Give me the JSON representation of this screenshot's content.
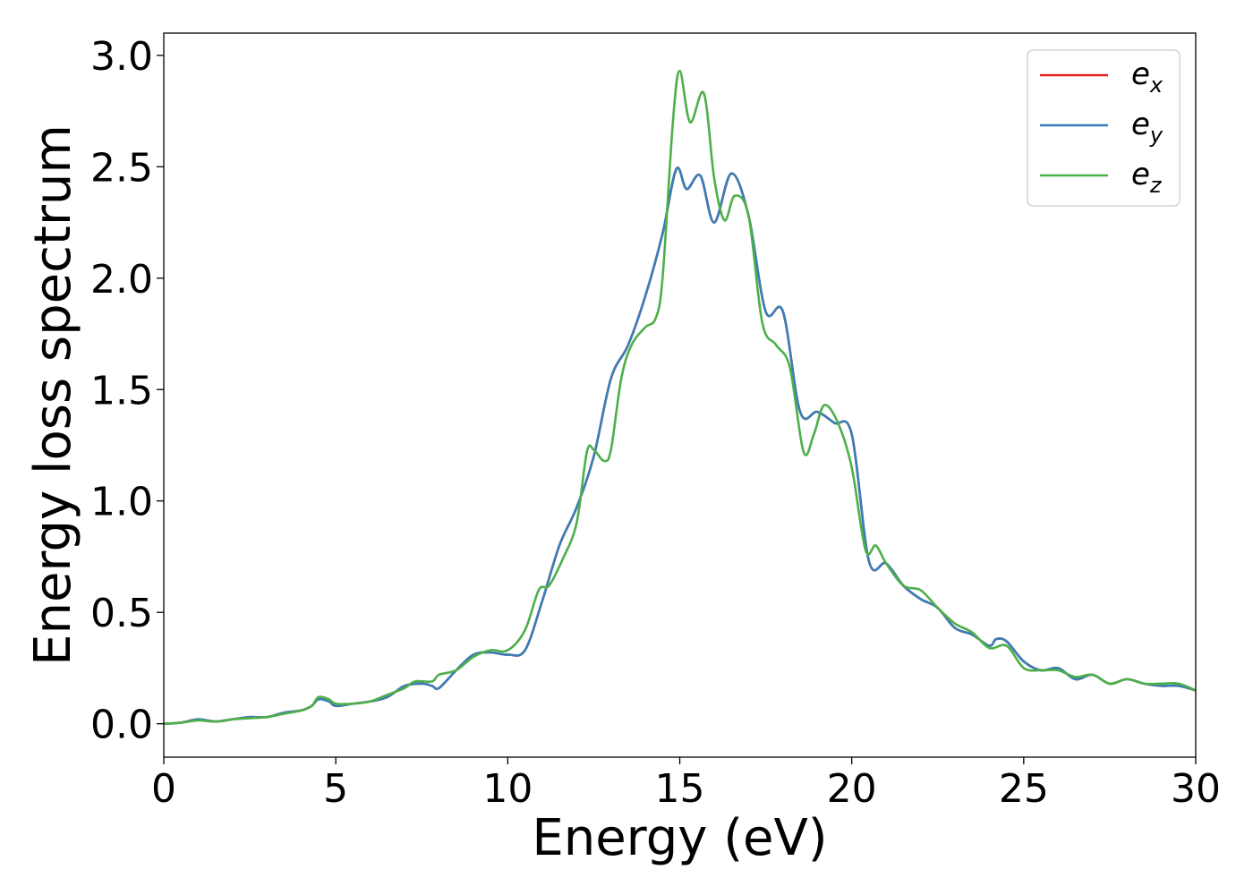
{
  "chart_data": {
    "type": "line",
    "xlabel": "Energy (eV)",
    "ylabel": "Energy loss spectrum",
    "xlim": [
      0,
      30
    ],
    "ylim": [
      -0.15,
      3.1
    ],
    "xticks": [
      0,
      5,
      10,
      15,
      20,
      25,
      30
    ],
    "xtick_labels": [
      "0",
      "5",
      "10",
      "15",
      "20",
      "25",
      "30"
    ],
    "yticks": [
      0.0,
      0.5,
      1.0,
      1.5,
      2.0,
      2.5,
      3.0
    ],
    "ytick_labels": [
      "0.0",
      "0.5",
      "1.0",
      "1.5",
      "2.0",
      "2.5",
      "3.0"
    ],
    "grid": false,
    "legend_position": "top-right",
    "series": [
      {
        "name": "e",
        "subscript": "x",
        "color": "#e41a1c",
        "x": [
          0,
          0.5,
          1,
          1.5,
          2,
          2.5,
          3,
          3.5,
          4,
          4.3,
          4.5,
          4.8,
          5,
          5.5,
          6,
          6.5,
          7,
          7.5,
          7.8,
          8,
          8.5,
          9,
          9.5,
          10,
          10.5,
          11,
          11.5,
          12,
          12.5,
          13,
          13.5,
          14,
          14.5,
          14.9,
          15.2,
          15.6,
          16,
          16.5,
          17,
          17.5,
          18,
          18.5,
          19,
          19.5,
          20,
          20.5,
          21,
          21.5,
          22,
          22.5,
          23,
          23.5,
          24,
          24.2,
          24.5,
          25,
          25.5,
          26,
          26.5,
          27,
          27.5,
          28,
          28.5,
          29,
          29.5,
          30
        ],
        "y": [
          0,
          0.005,
          0.02,
          0.01,
          0.02,
          0.03,
          0.03,
          0.05,
          0.06,
          0.08,
          0.11,
          0.1,
          0.08,
          0.09,
          0.1,
          0.12,
          0.17,
          0.18,
          0.17,
          0.16,
          0.24,
          0.31,
          0.32,
          0.31,
          0.33,
          0.55,
          0.8,
          0.97,
          1.2,
          1.55,
          1.7,
          1.92,
          2.2,
          2.49,
          2.4,
          2.46,
          2.25,
          2.47,
          2.28,
          1.85,
          1.85,
          1.4,
          1.4,
          1.35,
          1.3,
          0.73,
          0.72,
          0.62,
          0.56,
          0.52,
          0.43,
          0.4,
          0.35,
          0.38,
          0.37,
          0.28,
          0.24,
          0.25,
          0.2,
          0.22,
          0.18,
          0.2,
          0.18,
          0.17,
          0.17,
          0.15
        ]
      },
      {
        "name": "e",
        "subscript": "y",
        "color": "#377eb8",
        "x": [
          0,
          0.5,
          1,
          1.5,
          2,
          2.5,
          3,
          3.5,
          4,
          4.3,
          4.5,
          4.8,
          5,
          5.5,
          6,
          6.5,
          7,
          7.5,
          7.8,
          8,
          8.5,
          9,
          9.5,
          10,
          10.5,
          11,
          11.5,
          12,
          12.5,
          13,
          13.5,
          14,
          14.5,
          14.9,
          15.2,
          15.6,
          16,
          16.5,
          17,
          17.5,
          18,
          18.5,
          19,
          19.5,
          20,
          20.5,
          21,
          21.5,
          22,
          22.5,
          23,
          23.5,
          24,
          24.2,
          24.5,
          25,
          25.5,
          26,
          26.5,
          27,
          27.5,
          28,
          28.5,
          29,
          29.5,
          30
        ],
        "y": [
          0,
          0.005,
          0.02,
          0.01,
          0.02,
          0.03,
          0.03,
          0.05,
          0.06,
          0.08,
          0.11,
          0.1,
          0.08,
          0.09,
          0.1,
          0.12,
          0.17,
          0.18,
          0.17,
          0.16,
          0.24,
          0.31,
          0.32,
          0.31,
          0.33,
          0.55,
          0.8,
          0.97,
          1.2,
          1.55,
          1.7,
          1.92,
          2.2,
          2.49,
          2.4,
          2.46,
          2.25,
          2.47,
          2.28,
          1.85,
          1.85,
          1.4,
          1.4,
          1.35,
          1.3,
          0.73,
          0.72,
          0.62,
          0.56,
          0.52,
          0.43,
          0.4,
          0.35,
          0.38,
          0.37,
          0.28,
          0.24,
          0.25,
          0.2,
          0.22,
          0.18,
          0.2,
          0.18,
          0.17,
          0.17,
          0.15
        ]
      },
      {
        "name": "e",
        "subscript": "z",
        "color": "#4daf4a",
        "x": [
          0,
          0.5,
          1,
          1.5,
          2,
          2.5,
          3,
          3.5,
          4,
          4.3,
          4.5,
          4.8,
          5,
          5.5,
          6,
          6.5,
          7,
          7.3,
          7.8,
          8,
          8.5,
          9,
          9.5,
          10,
          10.5,
          10.9,
          11.2,
          11.6,
          12,
          12.3,
          12.5,
          12.8,
          13,
          13.3,
          13.6,
          14,
          14.3,
          14.5,
          14.8,
          15,
          15.3,
          15.7,
          16,
          16.3,
          16.6,
          17,
          17.4,
          17.8,
          18.2,
          18.6,
          18.9,
          19.2,
          19.6,
          20,
          20.4,
          20.7,
          21,
          21.5,
          22,
          22.5,
          23,
          23.5,
          24,
          24.5,
          25,
          25.5,
          26,
          26.5,
          27,
          27.5,
          28,
          28.5,
          29,
          29.5,
          30
        ],
        "y": [
          0,
          0.005,
          0.015,
          0.01,
          0.02,
          0.025,
          0.03,
          0.045,
          0.06,
          0.08,
          0.12,
          0.11,
          0.09,
          0.09,
          0.1,
          0.13,
          0.16,
          0.19,
          0.19,
          0.22,
          0.24,
          0.3,
          0.33,
          0.33,
          0.42,
          0.6,
          0.62,
          0.74,
          0.9,
          1.22,
          1.23,
          1.18,
          1.23,
          1.55,
          1.7,
          1.78,
          1.82,
          2.0,
          2.7,
          2.93,
          2.7,
          2.83,
          2.45,
          2.26,
          2.37,
          2.28,
          1.8,
          1.7,
          1.6,
          1.22,
          1.3,
          1.43,
          1.35,
          1.15,
          0.78,
          0.8,
          0.72,
          0.62,
          0.6,
          0.52,
          0.45,
          0.41,
          0.34,
          0.35,
          0.25,
          0.24,
          0.24,
          0.21,
          0.22,
          0.18,
          0.2,
          0.18,
          0.18,
          0.18,
          0.15
        ]
      }
    ]
  }
}
